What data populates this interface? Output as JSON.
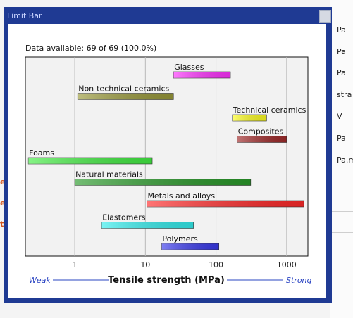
{
  "window": {
    "title": "Limit Bar"
  },
  "background": {
    "right_units": [
      "Pa",
      "Pa",
      "Pa",
      "stra",
      "V",
      "Pa",
      "Pa.m"
    ],
    "left_fragments": [
      "e",
      "e",
      "t"
    ]
  },
  "status_text": "Data available: 69 of 69 (100.0%)",
  "chart_data": {
    "type": "bar",
    "orientation": "horizontal-range",
    "xscale": "log",
    "xlim": [
      0.2,
      2000
    ],
    "xticks": [
      "1",
      "10",
      "100",
      "1000"
    ],
    "xtick_values": [
      1,
      10,
      100,
      1000
    ],
    "xlabel": "Tensile strength (MPa)",
    "x_left_annotation": "Weak",
    "x_right_annotation": "Strong",
    "grid": "vertical",
    "series": [
      {
        "name": "Glasses",
        "low": 25,
        "high": 160,
        "color": "#ff33ff"
      },
      {
        "name": "Non-technical ceramics",
        "low": 1.1,
        "high": 25,
        "color": "#9a9a3a"
      },
      {
        "name": "Technical ceramics",
        "low": 170,
        "high": 520,
        "color": "#ffff22"
      },
      {
        "name": "Composites",
        "low": 200,
        "high": 1000,
        "color": "#a02a2a"
      },
      {
        "name": "Foams",
        "low": 0.22,
        "high": 12.5,
        "color": "#44ee44"
      },
      {
        "name": "Natural materials",
        "low": 1.0,
        "high": 310,
        "color": "#2a9a2a"
      },
      {
        "name": "Metals and alloys",
        "low": 10.5,
        "high": 1750,
        "color": "#ff2a2a"
      },
      {
        "name": "Elastomers",
        "low": 2.4,
        "high": 48,
        "color": "#33eeee"
      },
      {
        "name": "Polymers",
        "low": 17,
        "high": 110,
        "color": "#3a3aee"
      }
    ]
  }
}
